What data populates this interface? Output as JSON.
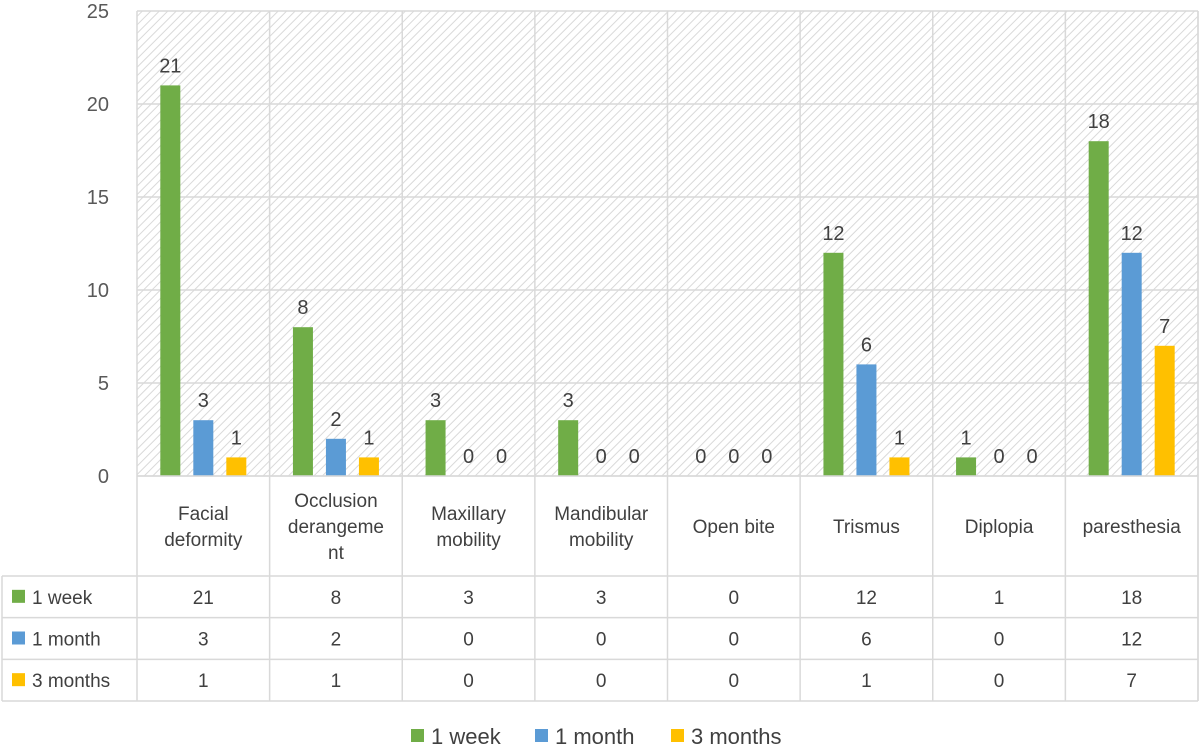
{
  "chart_data": {
    "type": "bar",
    "categories": [
      [
        "Facial",
        "deformity"
      ],
      [
        "Occlusion",
        "derangeme",
        "nt"
      ],
      [
        "Maxillary",
        "mobility"
      ],
      [
        "Mandibular",
        "mobility"
      ],
      [
        "Open bite"
      ],
      [
        "Trismus"
      ],
      [
        "Diplopia"
      ],
      [
        "paresthesia"
      ]
    ],
    "series": [
      {
        "name": "1 week",
        "color": "#70ad47",
        "values": [
          21,
          8,
          3,
          3,
          0,
          12,
          1,
          18
        ]
      },
      {
        "name": "1 month",
        "color": "#5b9bd5",
        "values": [
          3,
          2,
          0,
          0,
          0,
          6,
          0,
          12
        ]
      },
      {
        "name": "3 months",
        "color": "#ffc000",
        "values": [
          1,
          1,
          0,
          0,
          0,
          1,
          0,
          7
        ]
      }
    ],
    "ylim": [
      0,
      25
    ],
    "yticks": [
      0,
      5,
      10,
      15,
      20,
      25
    ],
    "grid": true,
    "legend": "bottom",
    "data_table": true
  }
}
